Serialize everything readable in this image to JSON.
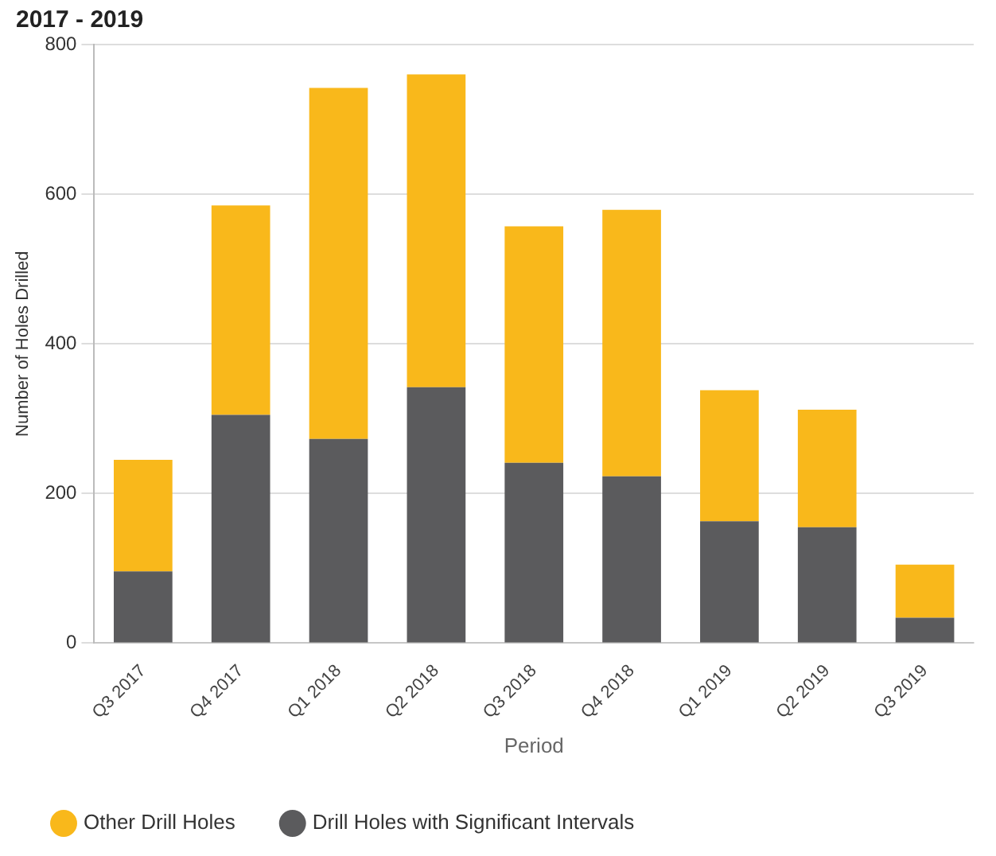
{
  "chart_data": {
    "type": "bar",
    "title": "2017 - 2019",
    "xlabel": "Period",
    "ylabel": "Number of Holes Drilled",
    "categories": [
      "Q3 2017",
      "Q4 2017",
      "Q1 2018",
      "Q2 2018",
      "Q3 2018",
      "Q4 2018",
      "Q1 2019",
      "Q2 2019",
      "Q3 2019"
    ],
    "series": [
      {
        "name": "Drill Holes with Significant Intervals",
        "color": "#5b5b5d",
        "values": [
          96,
          305,
          273,
          342,
          241,
          223,
          163,
          155,
          34
        ]
      },
      {
        "name": "Other Drill Holes",
        "color": "#f9b81b",
        "values": [
          149,
          280,
          469,
          418,
          316,
          356,
          175,
          157,
          71
        ]
      }
    ],
    "stacked": true,
    "ylim": [
      0,
      800
    ],
    "yticks": [
      0,
      200,
      400,
      600,
      800
    ],
    "grid": "y",
    "legend": "bottom"
  }
}
